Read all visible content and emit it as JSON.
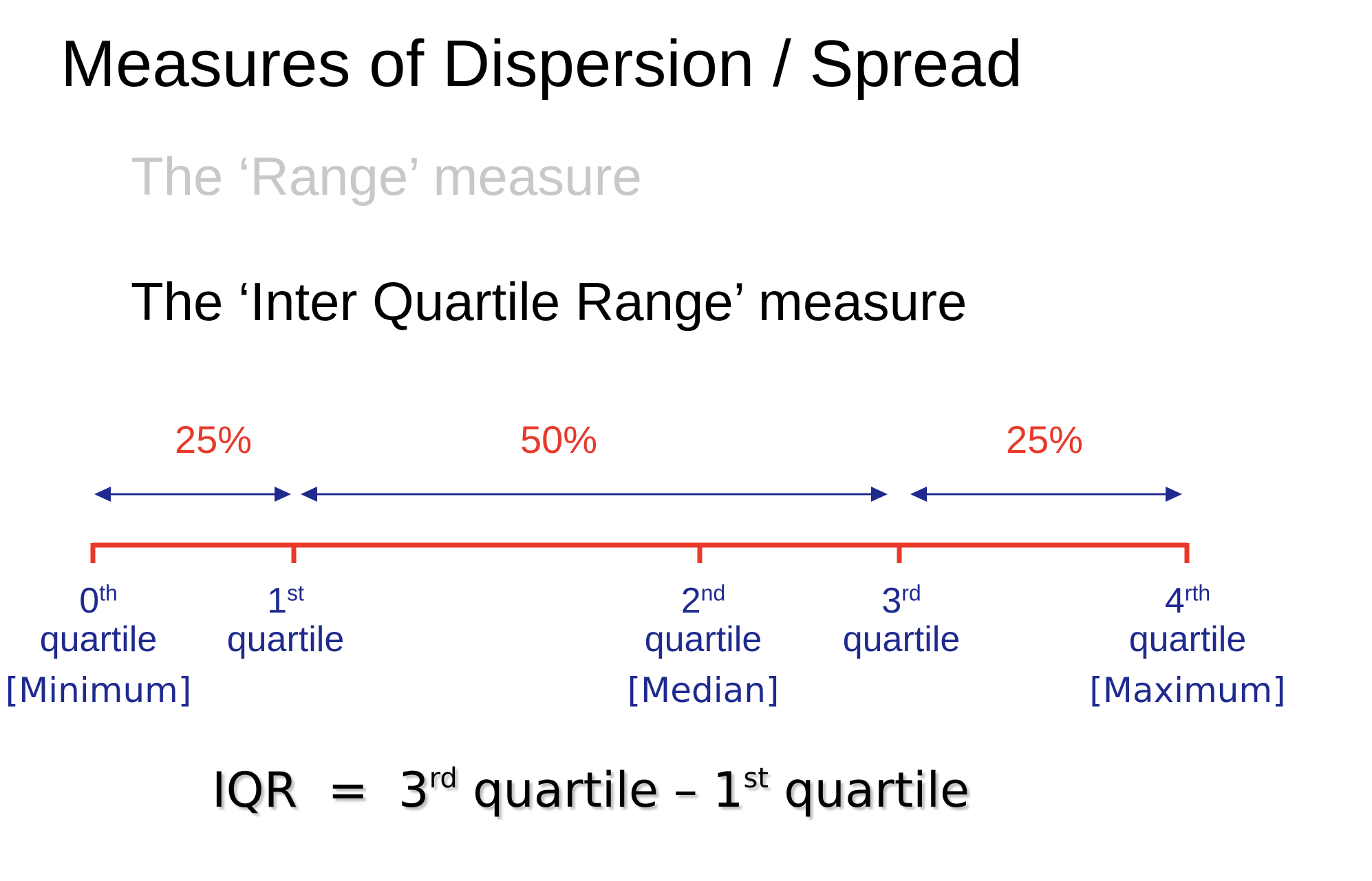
{
  "title": "Measures of Dispersion / Spread",
  "subtitle_range": "The ‘Range’ measure",
  "subtitle_iqr": "The ‘Inter Quartile Range’ measure",
  "percentages": [
    "25%",
    "50%",
    "25%"
  ],
  "quartiles": [
    {
      "num": "0",
      "sup": "th",
      "word": "quartile",
      "note": "[Minimum]"
    },
    {
      "num": "1",
      "sup": "st",
      "word": "quartile",
      "note": ""
    },
    {
      "num": "2",
      "sup": "nd",
      "word": "quartile",
      "note": "[Median]"
    },
    {
      "num": "3",
      "sup": "rd",
      "word": "quartile",
      "note": ""
    },
    {
      "num": "4",
      "sup": "rth",
      "word": "quartile",
      "note": "[Maximum]"
    }
  ],
  "formula": {
    "lhs": "IQR",
    "eq": "=",
    "a_num": "3",
    "a_sup": "rd",
    "a_word": "quartile",
    "minus": "–",
    "b_num": "1",
    "b_sup": "st",
    "b_word": "quartile"
  },
  "colors": {
    "axis": "#e8392a",
    "percent": "#e8392a",
    "arrow": "#1f2a8f",
    "label": "#1f2a8f",
    "faded": "#c8c8c8"
  }
}
